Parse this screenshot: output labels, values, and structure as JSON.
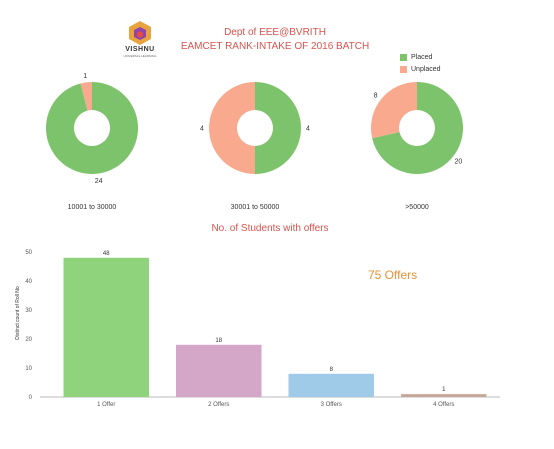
{
  "header": {
    "logo_text": "VISHNU",
    "logo_sub": "UNIVERSAL LEARNING",
    "title_line1": "Dept of EEE@BVRITH",
    "title_line2": "EAMCET RANK-INTAKE OF 2016 BATCH"
  },
  "colors": {
    "placed": "#7dc36b",
    "unplaced": "#f8a98e",
    "title": "#d9534f",
    "offers_text": "#e69138",
    "bar_colors": [
      "#8fd47c",
      "#d4a6c8",
      "#a0cbe8",
      "#c7a99b"
    ]
  },
  "chart_data": [
    {
      "type": "pie",
      "variant": "donut",
      "legend": {
        "placement": "top-right",
        "entries": [
          "Placed",
          "Unplaced"
        ]
      },
      "charts": [
        {
          "label": "10001 to 30000",
          "slices": [
            {
              "name": "Placed",
              "value": 24
            },
            {
              "name": "Unplaced",
              "value": 1
            }
          ]
        },
        {
          "label": "30001 to 50000",
          "slices": [
            {
              "name": "Placed",
              "value": 4
            },
            {
              "name": "Unplaced",
              "value": 4
            }
          ]
        },
        {
          "label": ">50000",
          "slices": [
            {
              "name": "Placed",
              "value": 20
            },
            {
              "name": "Unplaced",
              "value": 8
            }
          ]
        }
      ]
    },
    {
      "type": "bar",
      "title": "No. of  Students with offers",
      "categories": [
        "1 Offer",
        "2 Offers",
        "3 Offers",
        "4 Offers"
      ],
      "values": [
        48,
        18,
        8,
        1
      ],
      "ylabel": "Distinct count of Roll No",
      "yticks": [
        0,
        10,
        20,
        30,
        40,
        50
      ],
      "ylim": [
        0,
        50
      ],
      "grid": false,
      "annotation": "75 Offers"
    }
  ]
}
